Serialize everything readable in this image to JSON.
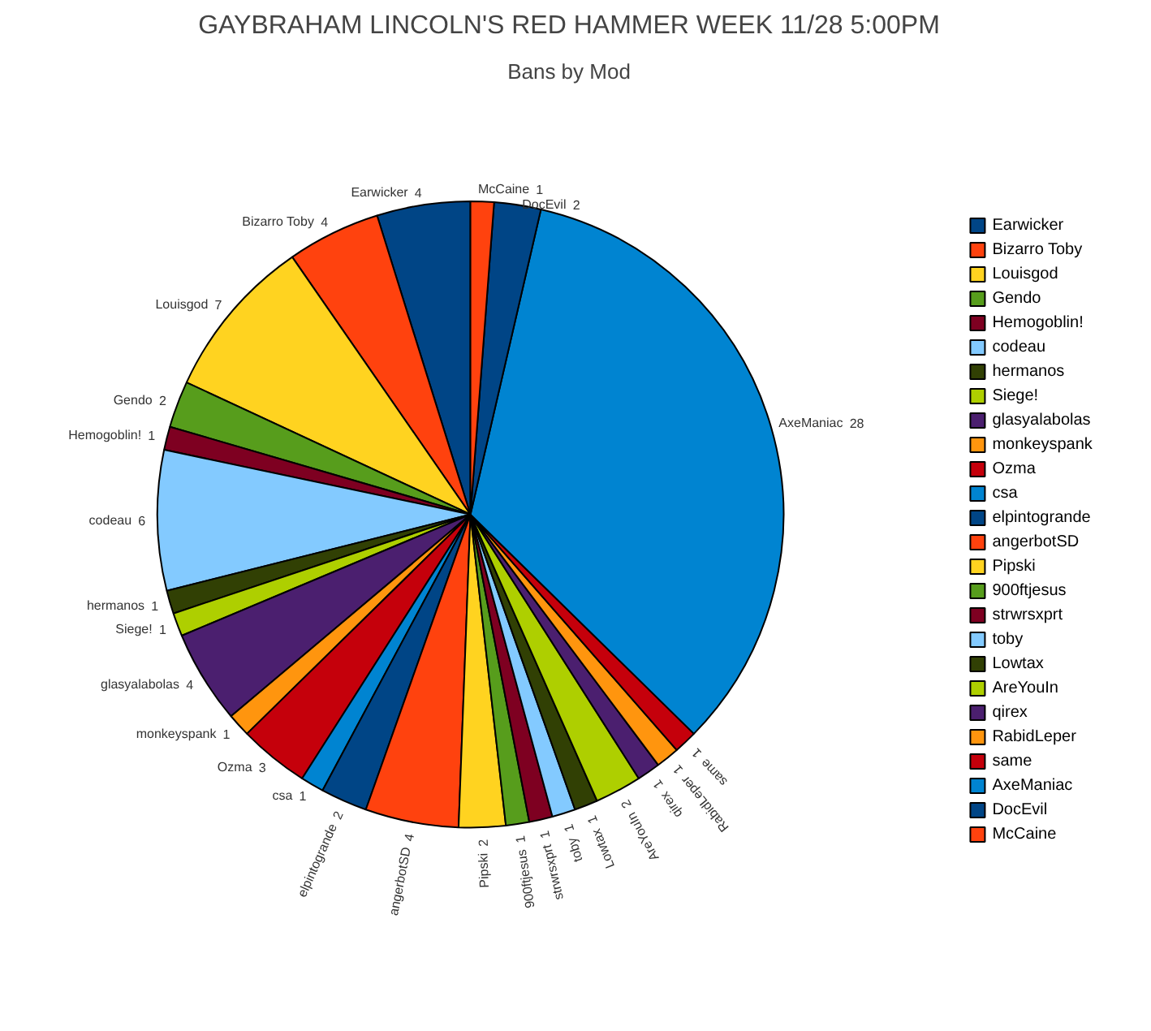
{
  "chart_data": {
    "type": "pie",
    "title": "GAYBRAHAM LINCOLN'S RED HAMMER WEEK 11/28 5:00PM",
    "subtitle": "Bans by Mod",
    "categories": [
      "Earwicker",
      "Bizarro Toby",
      "Louisgod",
      "Gendo",
      "Hemogoblin!",
      "codeau",
      "hermanos",
      "Siege!",
      "glasyalabolas",
      "monkeyspank",
      "Ozma",
      "csa",
      "elpintogrande",
      "angerbotSD",
      "Pipski",
      "900ftjesus",
      "strwrsxprt",
      "toby",
      "Lowtax",
      "AreYouIn",
      "qirex",
      "RabidLeper",
      "same",
      "AxeManiac",
      "DocEvil",
      "McCaine"
    ],
    "values": [
      4,
      4,
      7,
      2,
      1,
      6,
      1,
      1,
      4,
      1,
      3,
      1,
      2,
      4,
      2,
      1,
      1,
      1,
      1,
      2,
      1,
      1,
      1,
      28,
      2,
      1
    ],
    "colors": [
      "#004586",
      "#ff420e",
      "#ffd320",
      "#579d1c",
      "#7e0021",
      "#83caff",
      "#314004",
      "#aecf00",
      "#4b1f6f",
      "#ff950e",
      "#c5000b",
      "#0084d1",
      "#004586",
      "#ff420e",
      "#ffd320",
      "#579d1c",
      "#7e0021",
      "#83caff",
      "#314004",
      "#aecf00",
      "#4b1f6f",
      "#ff950e",
      "#c5000b",
      "#0084d1",
      "#004586",
      "#ff420e"
    ],
    "data_labels": true,
    "legend": "right"
  }
}
